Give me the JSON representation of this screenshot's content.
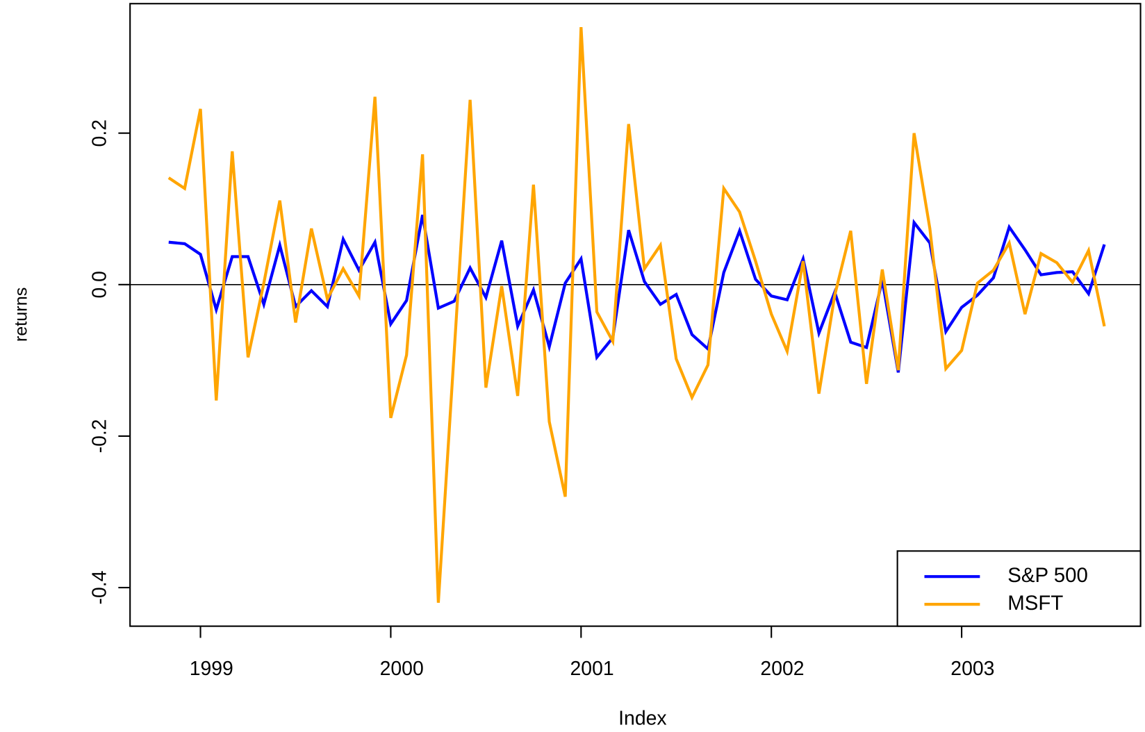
{
  "chart_data": {
    "type": "line",
    "x_label": "Index",
    "y_label": "returns",
    "x": [
      1998.833,
      1998.917,
      1999.0,
      1999.083,
      1999.167,
      1999.25,
      1999.333,
      1999.417,
      1999.5,
      1999.583,
      1999.667,
      1999.75,
      1999.833,
      1999.917,
      2000.0,
      2000.083,
      2000.167,
      2000.25,
      2000.333,
      2000.417,
      2000.5,
      2000.583,
      2000.667,
      2000.75,
      2000.833,
      2000.917,
      2001.0,
      2001.083,
      2001.167,
      2001.25,
      2001.333,
      2001.417,
      2001.5,
      2001.583,
      2001.667,
      2001.75,
      2001.833,
      2001.917,
      2002.0,
      2002.083,
      2002.167,
      2002.25,
      2002.333,
      2002.417,
      2002.5,
      2002.583,
      2002.667,
      2002.75,
      2002.833,
      2002.917,
      2003.0,
      2003.083,
      2003.167,
      2003.25,
      2003.333,
      2003.417,
      2003.5,
      2003.583,
      2003.667,
      2003.75
    ],
    "series": [
      {
        "name": "S&P 500",
        "color": "#0000ff",
        "values": [
          0.056,
          0.054,
          0.04,
          -0.033,
          0.037,
          0.037,
          -0.026,
          0.052,
          -0.029,
          -0.008,
          -0.029,
          0.06,
          0.019,
          0.056,
          -0.052,
          -0.021,
          0.092,
          -0.031,
          -0.022,
          0.022,
          -0.017,
          0.058,
          -0.055,
          -0.007,
          -0.082,
          0.002,
          0.034,
          -0.096,
          -0.07,
          0.072,
          0.004,
          -0.026,
          -0.013,
          -0.066,
          -0.085,
          0.016,
          0.071,
          0.007,
          -0.015,
          -0.02,
          0.034,
          -0.064,
          -0.01,
          -0.076,
          -0.083,
          0.006,
          -0.116,
          0.082,
          0.055,
          -0.062,
          -0.03,
          -0.014,
          0.009,
          0.076,
          0.046,
          0.013,
          0.016,
          0.017,
          -0.012,
          0.053
        ]
      },
      {
        "name": "MSFT",
        "color": "#ffa500",
        "values": [
          0.141,
          0.127,
          0.232,
          -0.153,
          0.176,
          -0.096,
          0.002,
          0.111,
          -0.05,
          0.074,
          -0.019,
          0.021,
          -0.015,
          0.248,
          -0.176,
          -0.093,
          0.172,
          -0.42,
          -0.09,
          0.244,
          -0.136,
          -0.002,
          -0.147,
          0.132,
          -0.181,
          -0.28,
          0.34,
          -0.036,
          -0.075,
          0.212,
          0.021,
          0.052,
          -0.098,
          -0.149,
          -0.106,
          0.127,
          0.096,
          0.031,
          -0.039,
          -0.088,
          0.031,
          -0.144,
          -0.014,
          0.071,
          -0.131,
          0.02,
          -0.113,
          0.2,
          0.074,
          -0.111,
          -0.087,
          0.002,
          0.019,
          0.055,
          -0.039,
          0.041,
          0.029,
          0.003,
          0.045,
          -0.055
        ]
      }
    ],
    "xlim": [
      1998.63,
      2003.94
    ],
    "xticks": [
      1999,
      2000,
      2001,
      2002,
      2003
    ],
    "ylim": [
      -0.451,
      0.371
    ],
    "yticks": [
      {
        "value": -0.4,
        "label": "-0.4"
      },
      {
        "value": -0.2,
        "label": "-0.2"
      },
      {
        "value": 0,
        "label": "0.0"
      },
      {
        "value": 0.2,
        "label": "0.2"
      }
    ],
    "hline": 0,
    "legend": "bottom-right"
  }
}
